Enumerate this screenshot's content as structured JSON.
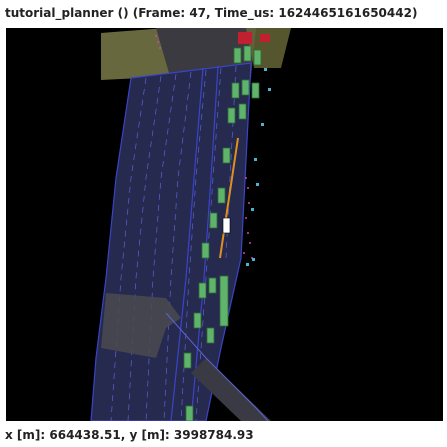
{
  "window": {
    "title": "tutorial_planner () (Frame: 47, Time_us: 1624465161650442)"
  },
  "status": {
    "coordinates": "x [m]: 664438.51, y [m]: 3998784.93"
  },
  "colors": {
    "background": "#000000",
    "lane_fill": "#2a2f55",
    "lane_edge": "#3b44c8",
    "road_gray": "#4a4a4a",
    "area_olive": "#7a7a4a",
    "vehicle_green": "#5fb36a",
    "ego_white": "#ffffff",
    "route_orange": "#e0901c",
    "pedestrian_cyan": "#4fb0d0",
    "boundary_magenta": "#d040c0"
  }
}
